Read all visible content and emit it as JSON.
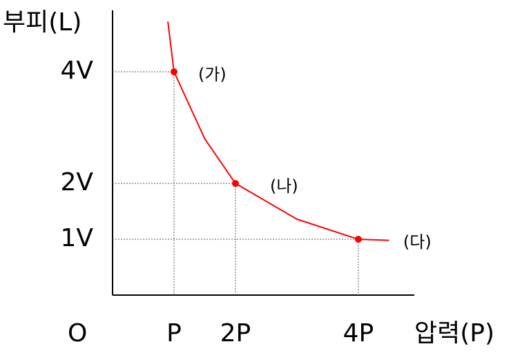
{
  "chart_data": {
    "type": "line",
    "y_label": "부피(L)",
    "x_label": "압력(P)",
    "origin_label": "O",
    "xlim": [
      0,
      4.9
    ],
    "ylim": [
      0,
      5.1
    ],
    "xticks": [
      {
        "value": 1,
        "label": "P"
      },
      {
        "value": 2,
        "label": "2P"
      },
      {
        "value": 4,
        "label": "4P"
      }
    ],
    "yticks": [
      {
        "value": 1,
        "label": "1V"
      },
      {
        "value": 2,
        "label": "2V"
      },
      {
        "value": 4,
        "label": "4V"
      }
    ],
    "grid": true,
    "series": [
      {
        "color": "#ff0000",
        "x": [
          0.9,
          1,
          1.5,
          2,
          3,
          4,
          4.5
        ],
        "values": [
          4.9,
          4,
          2.8,
          2,
          1.36,
          1,
          0.98
        ]
      }
    ],
    "points": {
      "labels": [
        "(가)",
        "(나)",
        "(다)"
      ],
      "x": [
        1,
        2,
        4
      ],
      "values": [
        4,
        2,
        1
      ],
      "color": "#ff0000"
    }
  }
}
